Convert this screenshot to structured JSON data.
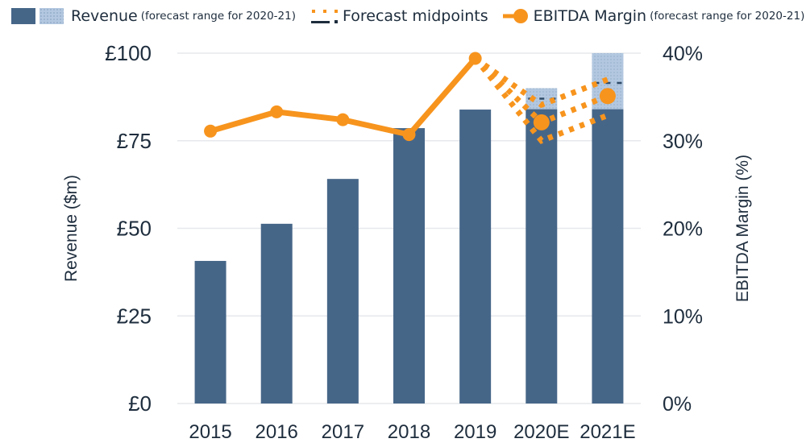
{
  "legend": {
    "revenue_label": "Revenue",
    "revenue_note": "(forecast range for 2020-21)",
    "midpoints_label": "Forecast midpoints",
    "ebitda_label": "EBITDA Margin",
    "ebitda_note": "(forecast range for 2020-21)"
  },
  "colors": {
    "bar": "#466688",
    "range": "#b3c8e0",
    "line": "#f7941d",
    "text": "#1e2d3d",
    "grid": "#e6e8ec"
  },
  "chart_data": {
    "type": "bar",
    "categories": [
      "2015",
      "2016",
      "2017",
      "2018",
      "2019",
      "2020E",
      "2021E"
    ],
    "ylabel": "Revenue ($m)",
    "y2label": "EBITDA Margin (%)",
    "ylim": [
      0,
      100
    ],
    "y2lim": [
      0,
      40
    ],
    "yticks": [
      "£0",
      "£25",
      "£50",
      "£75",
      "£100"
    ],
    "ytick_values": [
      0,
      25,
      50,
      75,
      100
    ],
    "y2ticks": [
      "0%",
      "10%",
      "20%",
      "30%",
      "40%"
    ],
    "y2tick_values": [
      0,
      10,
      20,
      30,
      40
    ],
    "grid": true,
    "legend_position": "top",
    "series": [
      {
        "name": "Revenue",
        "type": "bar",
        "values": [
          40.7,
          51.3,
          64.1,
          78.6,
          83.9,
          84,
          84
        ]
      },
      {
        "name": "Revenue forecast range (upper)",
        "type": "range",
        "values": [
          null,
          null,
          null,
          null,
          null,
          90,
          100
        ]
      },
      {
        "name": "Revenue forecast midpoint",
        "type": "marker",
        "values": [
          null,
          null,
          null,
          null,
          null,
          87,
          91.5
        ]
      },
      {
        "name": "EBITDA Margin",
        "type": "line",
        "axis": "right",
        "values": [
          31.1,
          33.3,
          32.4,
          30.7,
          39.4,
          32.1,
          35.1
        ]
      },
      {
        "name": "EBITDA forecast high",
        "type": "dotted-line",
        "axis": "right",
        "values": [
          null,
          null,
          null,
          null,
          39.4,
          34.1,
          37.0
        ]
      },
      {
        "name": "EBITDA forecast low",
        "type": "dotted-line",
        "axis": "right",
        "values": [
          null,
          null,
          null,
          null,
          39.4,
          30.0,
          32.9
        ]
      }
    ]
  }
}
